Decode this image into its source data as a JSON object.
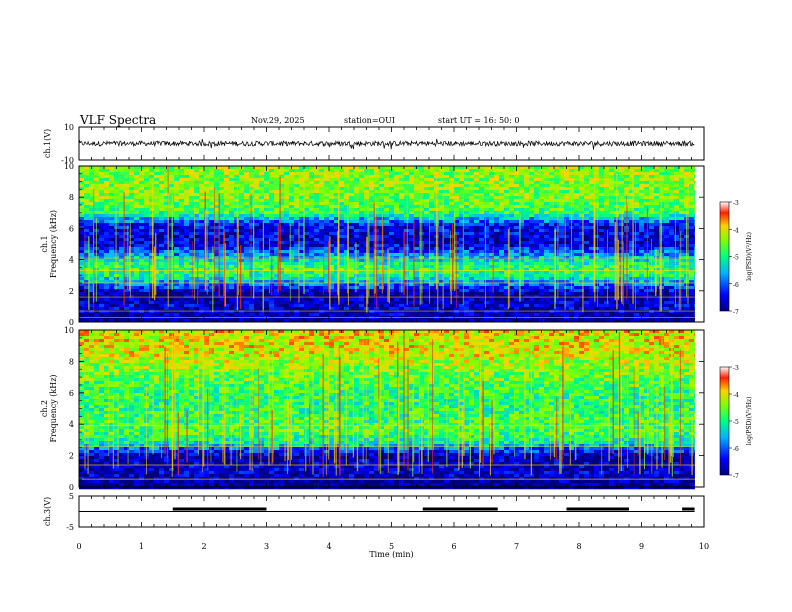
{
  "header": {
    "title": "VLF Spectra",
    "date": "Nov.29, 2025",
    "station": "station=OUI",
    "start": "start  UT =   16: 50: 0"
  },
  "chart_data": [
    {
      "type": "line",
      "name": "ch1-waveform",
      "ylabel": "ch.1(V)",
      "ylim": [
        -10,
        10
      ],
      "yticks": [
        {
          "v": 10,
          "label": "10"
        },
        {
          "v": -10,
          "label": "-10"
        }
      ],
      "xlim": [
        0,
        10
      ],
      "description_value_level": 0,
      "noise_amplitude": 1.5
    },
    {
      "type": "heatmap",
      "name": "ch1-spectrogram",
      "ylabel": "ch.1\nFrequency  (kHz)",
      "ylabel_lines": [
        "ch.1",
        "Frequency  (kHz)"
      ],
      "ylim": [
        0,
        10
      ],
      "yticks": [
        "0",
        "2",
        "4",
        "6",
        "8",
        "10"
      ],
      "xlim": [
        0,
        10
      ],
      "colorbar": {
        "label": "log(PSD)(V²/Hz)",
        "ticks": [
          "-3",
          "-4",
          "-5",
          "-6",
          "-7"
        ],
        "range": [
          -7,
          -3
        ]
      },
      "frequency_profile_kHz": [
        {
          "f": 0.0,
          "v": -7.0
        },
        {
          "f": 0.4,
          "v": -6.8
        },
        {
          "f": 1.0,
          "v": -6.6
        },
        {
          "f": 1.8,
          "v": -6.9
        },
        {
          "f": 2.2,
          "v": -6.2
        },
        {
          "f": 3.0,
          "v": -5.0
        },
        {
          "f": 3.5,
          "v": -4.8
        },
        {
          "f": 4.2,
          "v": -5.6
        },
        {
          "f": 5.0,
          "v": -6.6
        },
        {
          "f": 6.2,
          "v": -6.4
        },
        {
          "f": 7.0,
          "v": -4.8
        },
        {
          "f": 8.0,
          "v": -4.5
        },
        {
          "f": 10.0,
          "v": -4.4
        }
      ],
      "tone_lines_kHz": [
        0.3,
        0.7,
        1.6,
        2.5,
        3.3,
        4.1
      ]
    },
    {
      "type": "heatmap",
      "name": "ch2-spectrogram",
      "ylabel": "ch.2\nFrequency  (kHz)",
      "ylabel_lines": [
        "ch.2",
        "Frequency  (kHz)"
      ],
      "ylim": [
        0,
        10
      ],
      "yticks": [
        "0",
        "2",
        "4",
        "6",
        "8",
        "10"
      ],
      "xlim": [
        0,
        10
      ],
      "colorbar": {
        "label": "log(PSD)(V²/Hz)",
        "ticks": [
          "-3",
          "-4",
          "-5",
          "-6",
          "-7"
        ],
        "range": [
          -7,
          -3
        ]
      },
      "frequency_profile_kHz": [
        {
          "f": 0.0,
          "v": -7.0
        },
        {
          "f": 1.0,
          "v": -6.6
        },
        {
          "f": 2.0,
          "v": -6.8
        },
        {
          "f": 2.8,
          "v": -5.2
        },
        {
          "f": 3.5,
          "v": -4.7
        },
        {
          "f": 4.5,
          "v": -4.8
        },
        {
          "f": 5.5,
          "v": -4.9
        },
        {
          "f": 7.0,
          "v": -4.6
        },
        {
          "f": 8.5,
          "v": -4.1
        },
        {
          "f": 10.0,
          "v": -4.0
        }
      ],
      "tone_lines_kHz": [
        0.5,
        1.4,
        2.6,
        3.9
      ]
    },
    {
      "type": "line",
      "name": "ch3-trigger",
      "ylabel": "ch.3(V)",
      "ylim": [
        -5,
        5
      ],
      "yticks": [
        {
          "v": 5,
          "label": "5"
        },
        {
          "v": -5,
          "label": "-5"
        }
      ],
      "xlim": [
        0,
        10
      ],
      "baseline": 0,
      "high_segments_min": [
        [
          1.5,
          3.0
        ],
        [
          5.5,
          6.7
        ],
        [
          7.8,
          8.8
        ],
        [
          9.65,
          9.85
        ]
      ]
    }
  ],
  "xaxis": {
    "label": "Time  (min)",
    "ticks": [
      "0",
      "1",
      "2",
      "3",
      "4",
      "5",
      "6",
      "7",
      "8",
      "9",
      "10"
    ],
    "data_end": 9.85
  }
}
